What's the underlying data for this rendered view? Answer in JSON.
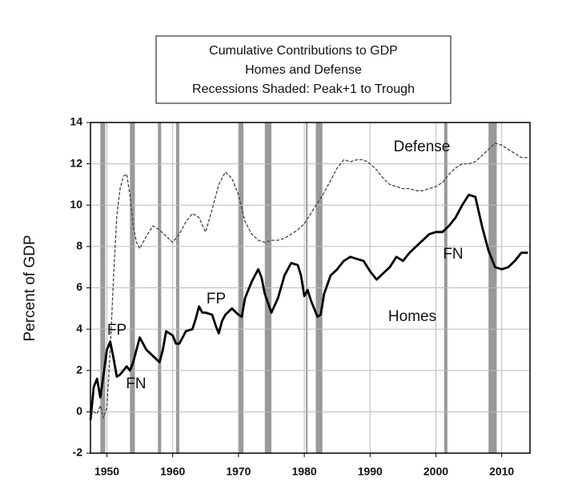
{
  "chart_data": {
    "type": "line",
    "title": [
      "Cumulative  Contributions to GDP",
      "Homes and Defense",
      "Recessions Shaded: Peak+1 to Trough"
    ],
    "y_label": "Percent of GDP",
    "xlim": [
      1947.5,
      2014.3
    ],
    "xticks": [
      1950,
      1960,
      1970,
      1980,
      1990,
      2000,
      2010
    ],
    "ylim": [
      -2,
      14
    ],
    "yticks": [
      -2,
      0,
      2,
      4,
      6,
      8,
      10,
      12,
      14
    ],
    "grid": true,
    "recessions": [
      [
        1949.0,
        1949.75
      ],
      [
        1953.5,
        1954.25
      ],
      [
        1957.75,
        1958.25
      ],
      [
        1960.5,
        1961.0
      ],
      [
        1970.0,
        1970.75
      ],
      [
        1974.0,
        1975.0
      ],
      [
        1980.25,
        1980.5
      ],
      [
        1981.75,
        1982.75
      ],
      [
        2001.25,
        2001.75
      ],
      [
        2008.0,
        2009.25
      ]
    ],
    "recession_color": "#999999",
    "series": [
      {
        "name": "Defense",
        "color": "#444444",
        "dashed": true,
        "x": [
          1947.5,
          1948,
          1948.5,
          1949,
          1949.5,
          1950,
          1950.5,
          1951,
          1951.5,
          1952,
          1952.5,
          1953,
          1953.5,
          1954,
          1954.5,
          1955,
          1956,
          1957,
          1958,
          1959,
          1960,
          1961,
          1962,
          1963,
          1964,
          1965,
          1966,
          1967,
          1968,
          1969,
          1970,
          1971,
          1972,
          1973,
          1974,
          1975,
          1976,
          1977,
          1978,
          1979,
          1980,
          1981,
          1982,
          1983,
          1984,
          1985,
          1986,
          1987,
          1988,
          1989,
          1990,
          1991,
          1992,
          1993,
          1994,
          1995,
          1996,
          1997,
          1998,
          1999,
          2000,
          2001,
          2002,
          2003,
          2004,
          2005,
          2006,
          2007,
          2008,
          2009,
          2010,
          2011,
          2012,
          2013,
          2014
        ],
        "values": [
          -0.2,
          0.0,
          -0.1,
          0.3,
          -0.3,
          0.2,
          3.0,
          6.5,
          9.5,
          10.8,
          11.4,
          11.5,
          10.5,
          9.0,
          8.2,
          7.9,
          8.5,
          9.0,
          8.8,
          8.5,
          8.2,
          8.6,
          9.2,
          9.6,
          9.4,
          8.7,
          9.8,
          11.0,
          11.6,
          11.3,
          10.5,
          9.2,
          8.6,
          8.3,
          8.2,
          8.3,
          8.3,
          8.4,
          8.6,
          8.8,
          9.1,
          9.6,
          10.1,
          10.6,
          11.2,
          11.8,
          12.2,
          12.1,
          12.2,
          12.2,
          12.0,
          11.7,
          11.3,
          11.0,
          10.9,
          10.8,
          10.8,
          10.7,
          10.7,
          10.8,
          10.9,
          11.1,
          11.5,
          11.8,
          12.0,
          12.0,
          12.1,
          12.4,
          12.7,
          13.0,
          12.9,
          12.7,
          12.5,
          12.3,
          12.3
        ]
      },
      {
        "name": "Homes",
        "color": "#000000",
        "dashed": false,
        "x": [
          1947.5,
          1948,
          1948.5,
          1949,
          1949.5,
          1950,
          1950.5,
          1951,
          1951.5,
          1952,
          1952.5,
          1953,
          1953.5,
          1954,
          1954.5,
          1955,
          1955.5,
          1956,
          1957,
          1958,
          1958.5,
          1959,
          1959.5,
          1960,
          1960.5,
          1961,
          1961.5,
          1962,
          1963,
          1963.5,
          1964,
          1964.5,
          1965,
          1966,
          1966.5,
          1967,
          1967.5,
          1968,
          1969,
          1970,
          1970.5,
          1971,
          1972,
          1973,
          1973.5,
          1974,
          1975,
          1976,
          1977,
          1978,
          1979,
          1979.5,
          1980,
          1980.5,
          1981,
          1982,
          1982.5,
          1983,
          1984,
          1985,
          1986,
          1987,
          1988,
          1989,
          1990,
          1991,
          1992,
          1993,
          1994,
          1995,
          1996,
          1997,
          1998,
          1999,
          2000,
          2001,
          2002,
          2003,
          2004,
          2005,
          2006,
          2007,
          2008,
          2009,
          2010,
          2011,
          2012,
          2013,
          2014
        ],
        "values": [
          -0.4,
          1.2,
          1.6,
          0.7,
          1.8,
          3.0,
          3.4,
          2.6,
          1.7,
          1.8,
          2.0,
          2.2,
          2.0,
          2.4,
          3.0,
          3.6,
          3.3,
          3.0,
          2.7,
          2.4,
          3.0,
          3.9,
          3.8,
          3.7,
          3.3,
          3.3,
          3.6,
          3.9,
          4.0,
          4.5,
          5.1,
          4.8,
          4.8,
          4.7,
          4.2,
          3.8,
          4.4,
          4.7,
          5.0,
          4.7,
          4.6,
          5.5,
          6.3,
          6.9,
          6.5,
          5.7,
          4.8,
          5.5,
          6.6,
          7.2,
          7.1,
          6.6,
          5.6,
          5.9,
          5.4,
          4.6,
          4.7,
          5.7,
          6.6,
          6.9,
          7.3,
          7.5,
          7.4,
          7.3,
          6.8,
          6.4,
          6.7,
          7.0,
          7.5,
          7.3,
          7.7,
          8.0,
          8.3,
          8.6,
          8.7,
          8.7,
          9.0,
          9.4,
          10.0,
          10.5,
          10.4,
          9.0,
          7.8,
          7.0,
          6.9,
          7.0,
          7.3,
          7.7,
          7.7
        ]
      }
    ],
    "annotations": [
      "FP",
      "FN",
      "FP",
      "FN"
    ]
  }
}
